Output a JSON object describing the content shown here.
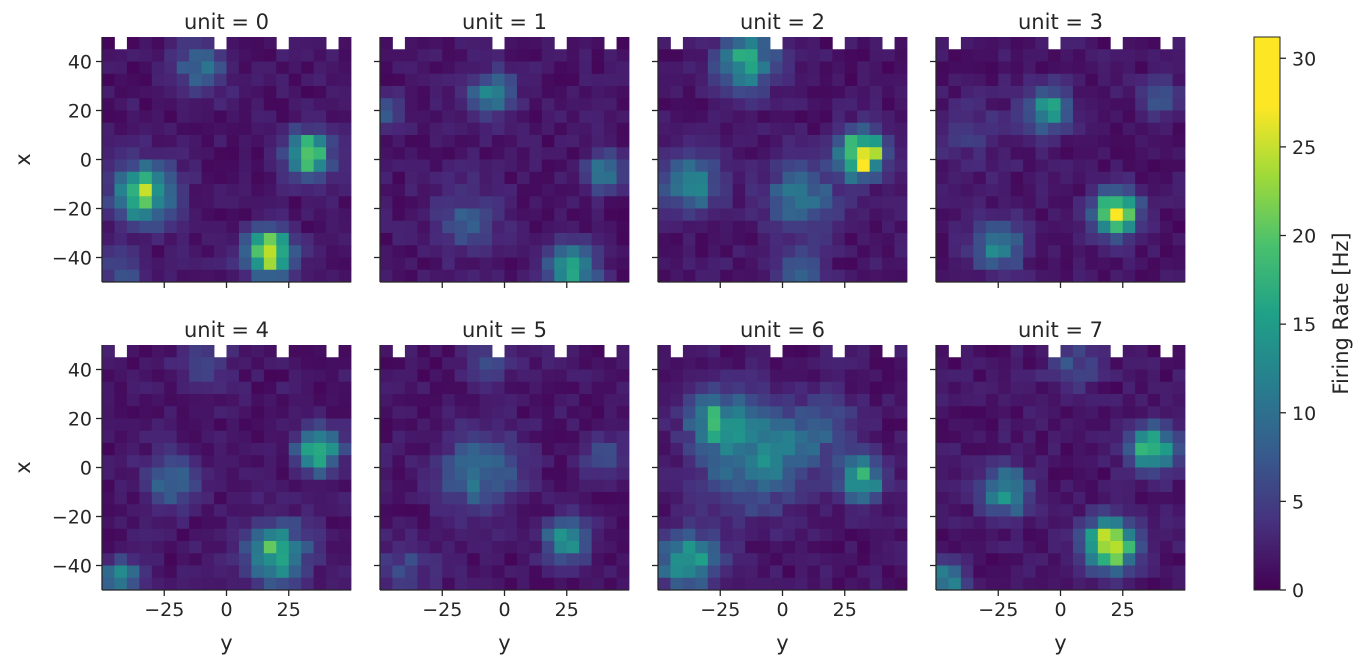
{
  "chart_data": {
    "type": "heatmap",
    "facet_titles": [
      "unit = 0",
      "unit = 1",
      "unit = 2",
      "unit = 3",
      "unit = 4",
      "unit = 5",
      "unit = 6",
      "unit = 7"
    ],
    "xlabel": "y",
    "ylabel": "x",
    "x_range": [
      -50,
      50
    ],
    "y_range": [
      -50,
      50
    ],
    "x_ticks": [
      -25,
      0,
      25
    ],
    "x_tick_labels": [
      "−25",
      "0",
      "25"
    ],
    "y_ticks": [
      40,
      20,
      0,
      -20,
      -40
    ],
    "y_tick_labels": [
      "40",
      "20",
      "0",
      "−20",
      "−40"
    ],
    "bins": 20,
    "colormap": "viridis",
    "colorbar": {
      "label": "Firing Rate [Hz]",
      "range": [
        0,
        31.2
      ],
      "ticks": [
        0,
        5,
        10,
        15,
        20,
        25,
        30
      ],
      "tick_labels": [
        "0",
        "5",
        "10",
        "15",
        "20",
        "25",
        "30"
      ]
    },
    "units": [
      {
        "unit": 0,
        "fields": [
          {
            "x": -14,
            "y": -33,
            "rate": 23,
            "spread": 8
          },
          {
            "x": -38,
            "y": 17,
            "rate": 31,
            "spread": 6
          },
          {
            "x": 2,
            "y": 33,
            "rate": 22,
            "spread": 6
          },
          {
            "x": 38,
            "y": -10,
            "rate": 10,
            "spread": 7
          },
          {
            "x": -45,
            "y": -42,
            "rate": 7,
            "spread": 5
          }
        ]
      },
      {
        "unit": 1,
        "fields": [
          {
            "x": 27,
            "y": -5,
            "rate": 13,
            "spread": 6
          },
          {
            "x": -45,
            "y": 27,
            "rate": 16,
            "spread": 7
          },
          {
            "x": -5,
            "y": 40,
            "rate": 12,
            "spread": 5
          },
          {
            "x": 20,
            "y": -47,
            "rate": 10,
            "spread": 4
          },
          {
            "x": -25,
            "y": -15,
            "rate": 7,
            "spread": 9
          }
        ]
      },
      {
        "unit": 2,
        "fields": [
          {
            "x": 40,
            "y": -15,
            "rate": 16,
            "spread": 8
          },
          {
            "x": 2,
            "y": 32,
            "rate": 31,
            "spread": 6
          },
          {
            "x": -10,
            "y": -37,
            "rate": 13,
            "spread": 8
          },
          {
            "x": -15,
            "y": 7,
            "rate": 10,
            "spread": 10
          },
          {
            "x": -45,
            "y": 7,
            "rate": 9,
            "spread": 6
          }
        ]
      },
      {
        "unit": 3,
        "fields": [
          {
            "x": 20,
            "y": -5,
            "rate": 17,
            "spread": 6
          },
          {
            "x": -22,
            "y": 22,
            "rate": 27,
            "spread": 6
          },
          {
            "x": -35,
            "y": -25,
            "rate": 12,
            "spread": 7
          },
          {
            "x": 25,
            "y": 40,
            "rate": 7,
            "spread": 5
          },
          {
            "x": 10,
            "y": -35,
            "rate": 3,
            "spread": 10
          }
        ]
      },
      {
        "unit": 4,
        "fields": [
          {
            "x": -5,
            "y": -22,
            "rate": 10,
            "spread": 7
          },
          {
            "x": -35,
            "y": 20,
            "rate": 20,
            "spread": 8
          },
          {
            "x": 7,
            "y": 37,
            "rate": 19,
            "spread": 6
          },
          {
            "x": -45,
            "y": -42,
            "rate": 14,
            "spread": 5
          },
          {
            "x": 42,
            "y": -10,
            "rate": 4,
            "spread": 8
          }
        ]
      },
      {
        "unit": 5,
        "fields": [
          {
            "x": -2,
            "y": -10,
            "rate": 11,
            "spread": 10
          },
          {
            "x": -30,
            "y": 25,
            "rate": 14,
            "spread": 6
          },
          {
            "x": 5,
            "y": 40,
            "rate": 6,
            "spread": 6
          },
          {
            "x": -42,
            "y": -40,
            "rate": 5,
            "spread": 8
          },
          {
            "x": 42,
            "y": -5,
            "rate": 5,
            "spread": 6
          }
        ]
      },
      {
        "unit": 6,
        "fields": [
          {
            "x": 5,
            "y": -12,
            "rate": 13,
            "spread": 14
          },
          {
            "x": -38,
            "y": -38,
            "rate": 17,
            "spread": 8
          },
          {
            "x": -5,
            "y": 32,
            "rate": 17,
            "spread": 6
          },
          {
            "x": 20,
            "y": -27,
            "rate": 14,
            "spread": 7
          },
          {
            "x": 15,
            "y": 15,
            "rate": 6,
            "spread": 10
          }
        ]
      },
      {
        "unit": 7,
        "fields": [
          {
            "x": -32,
            "y": 20,
            "rate": 29,
            "spread": 7
          },
          {
            "x": 8,
            "y": 37,
            "rate": 22,
            "spread": 6
          },
          {
            "x": -10,
            "y": -22,
            "rate": 13,
            "spread": 7
          },
          {
            "x": -45,
            "y": -45,
            "rate": 12,
            "spread": 5
          },
          {
            "x": 43,
            "y": 5,
            "rate": 6,
            "spread": 7
          }
        ]
      }
    ],
    "missing_bins": [
      [
        -44,
        46
      ],
      [
        -4,
        46
      ],
      [
        24,
        46
      ],
      [
        44,
        46
      ]
    ]
  }
}
